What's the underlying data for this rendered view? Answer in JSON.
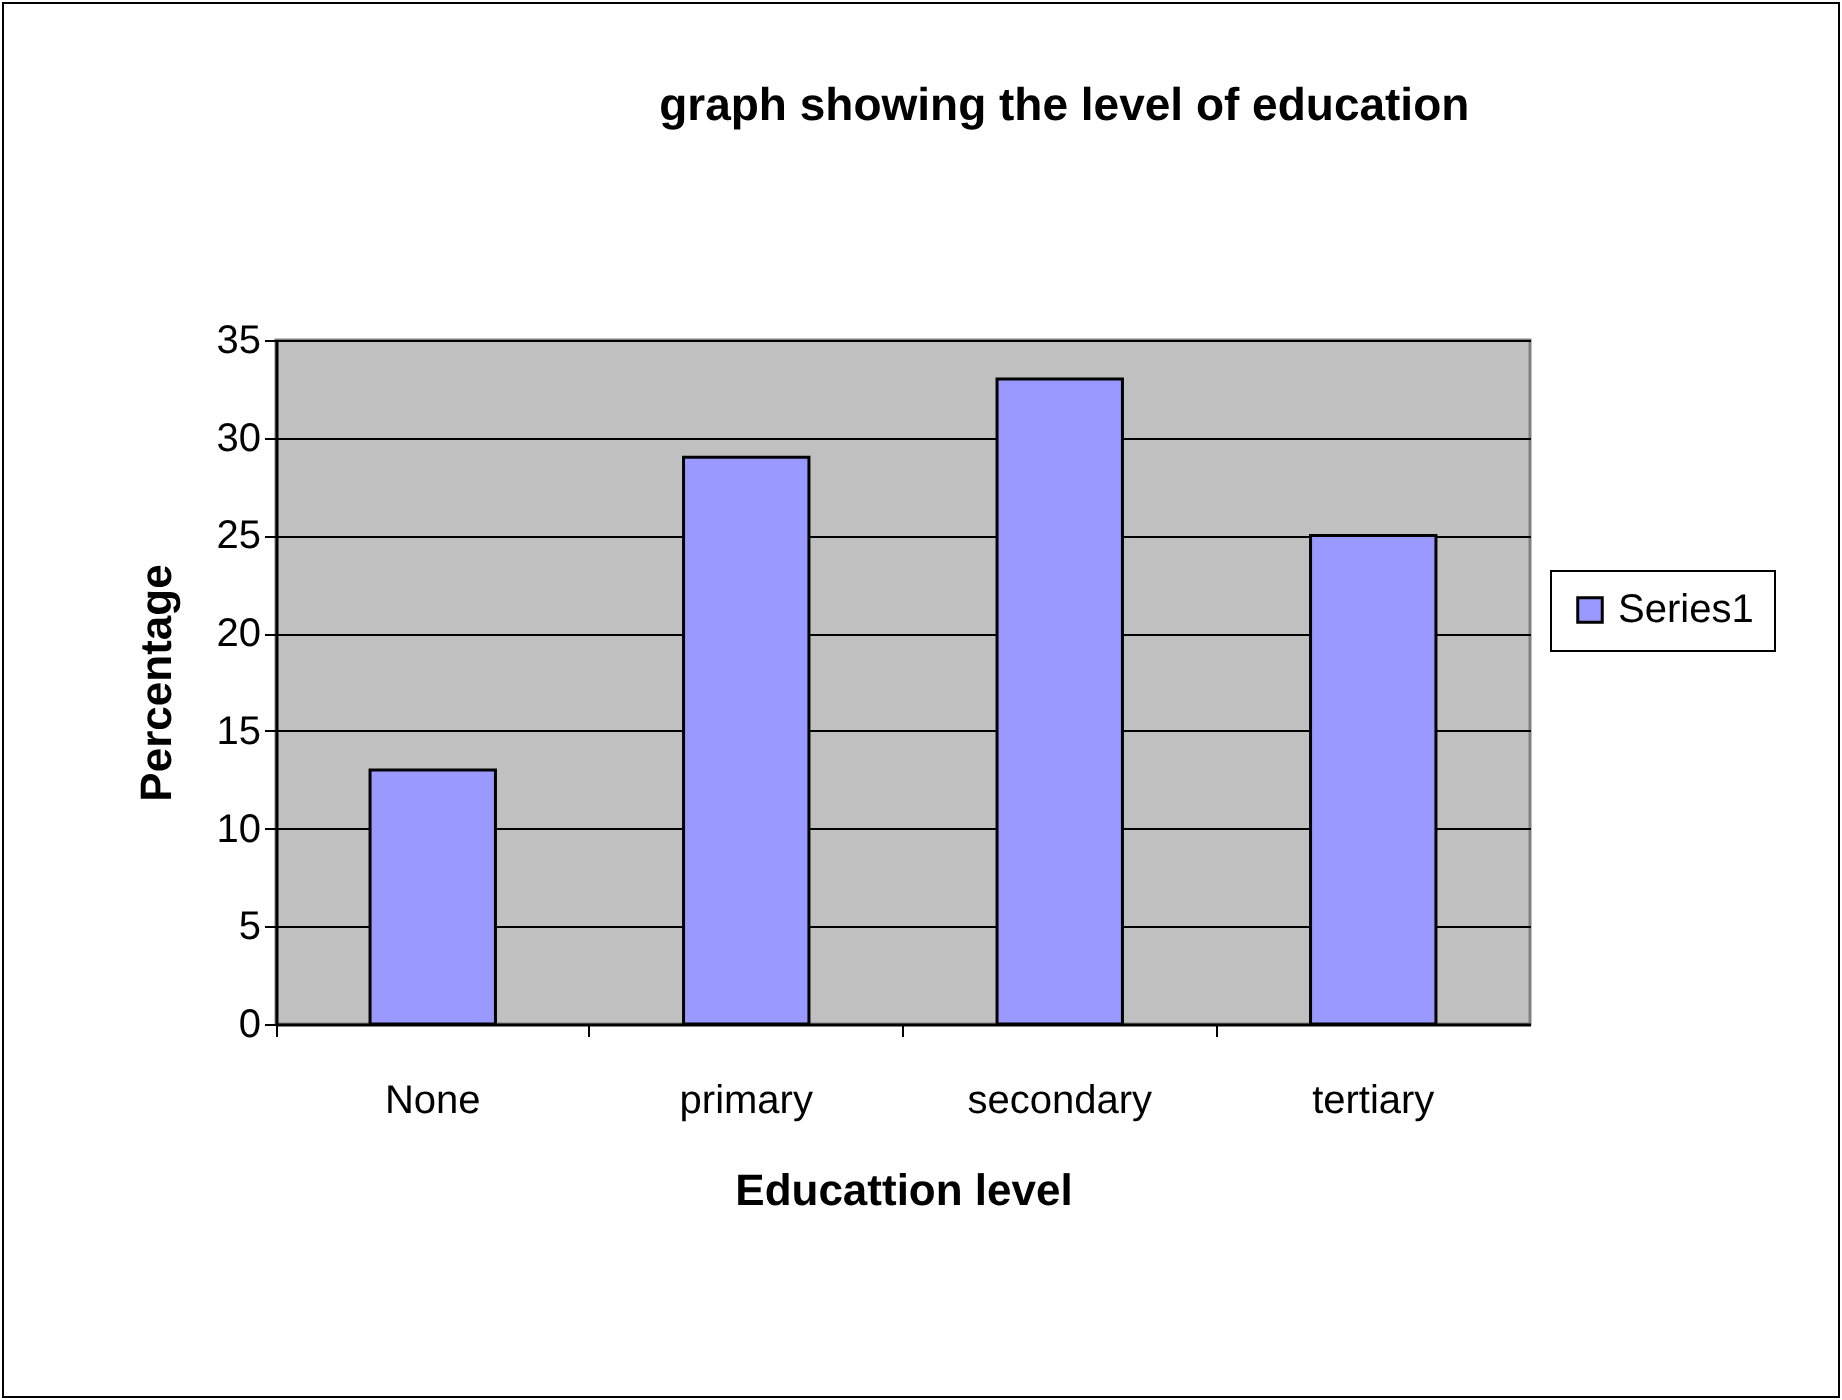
{
  "chart_data": {
    "type": "bar",
    "title": "graph showing the level of education",
    "xlabel": "Educattion level",
    "ylabel": "Percentage",
    "categories": [
      "None",
      "primary",
      "secondary",
      "tertiary"
    ],
    "series": [
      {
        "name": "Series1",
        "color": "#9999ff",
        "values": [
          13,
          29,
          33,
          25
        ]
      }
    ],
    "ylim": [
      0,
      35
    ],
    "yticks": [
      0,
      5,
      10,
      15,
      20,
      25,
      30,
      35
    ],
    "grid": "y",
    "legend": "right"
  }
}
